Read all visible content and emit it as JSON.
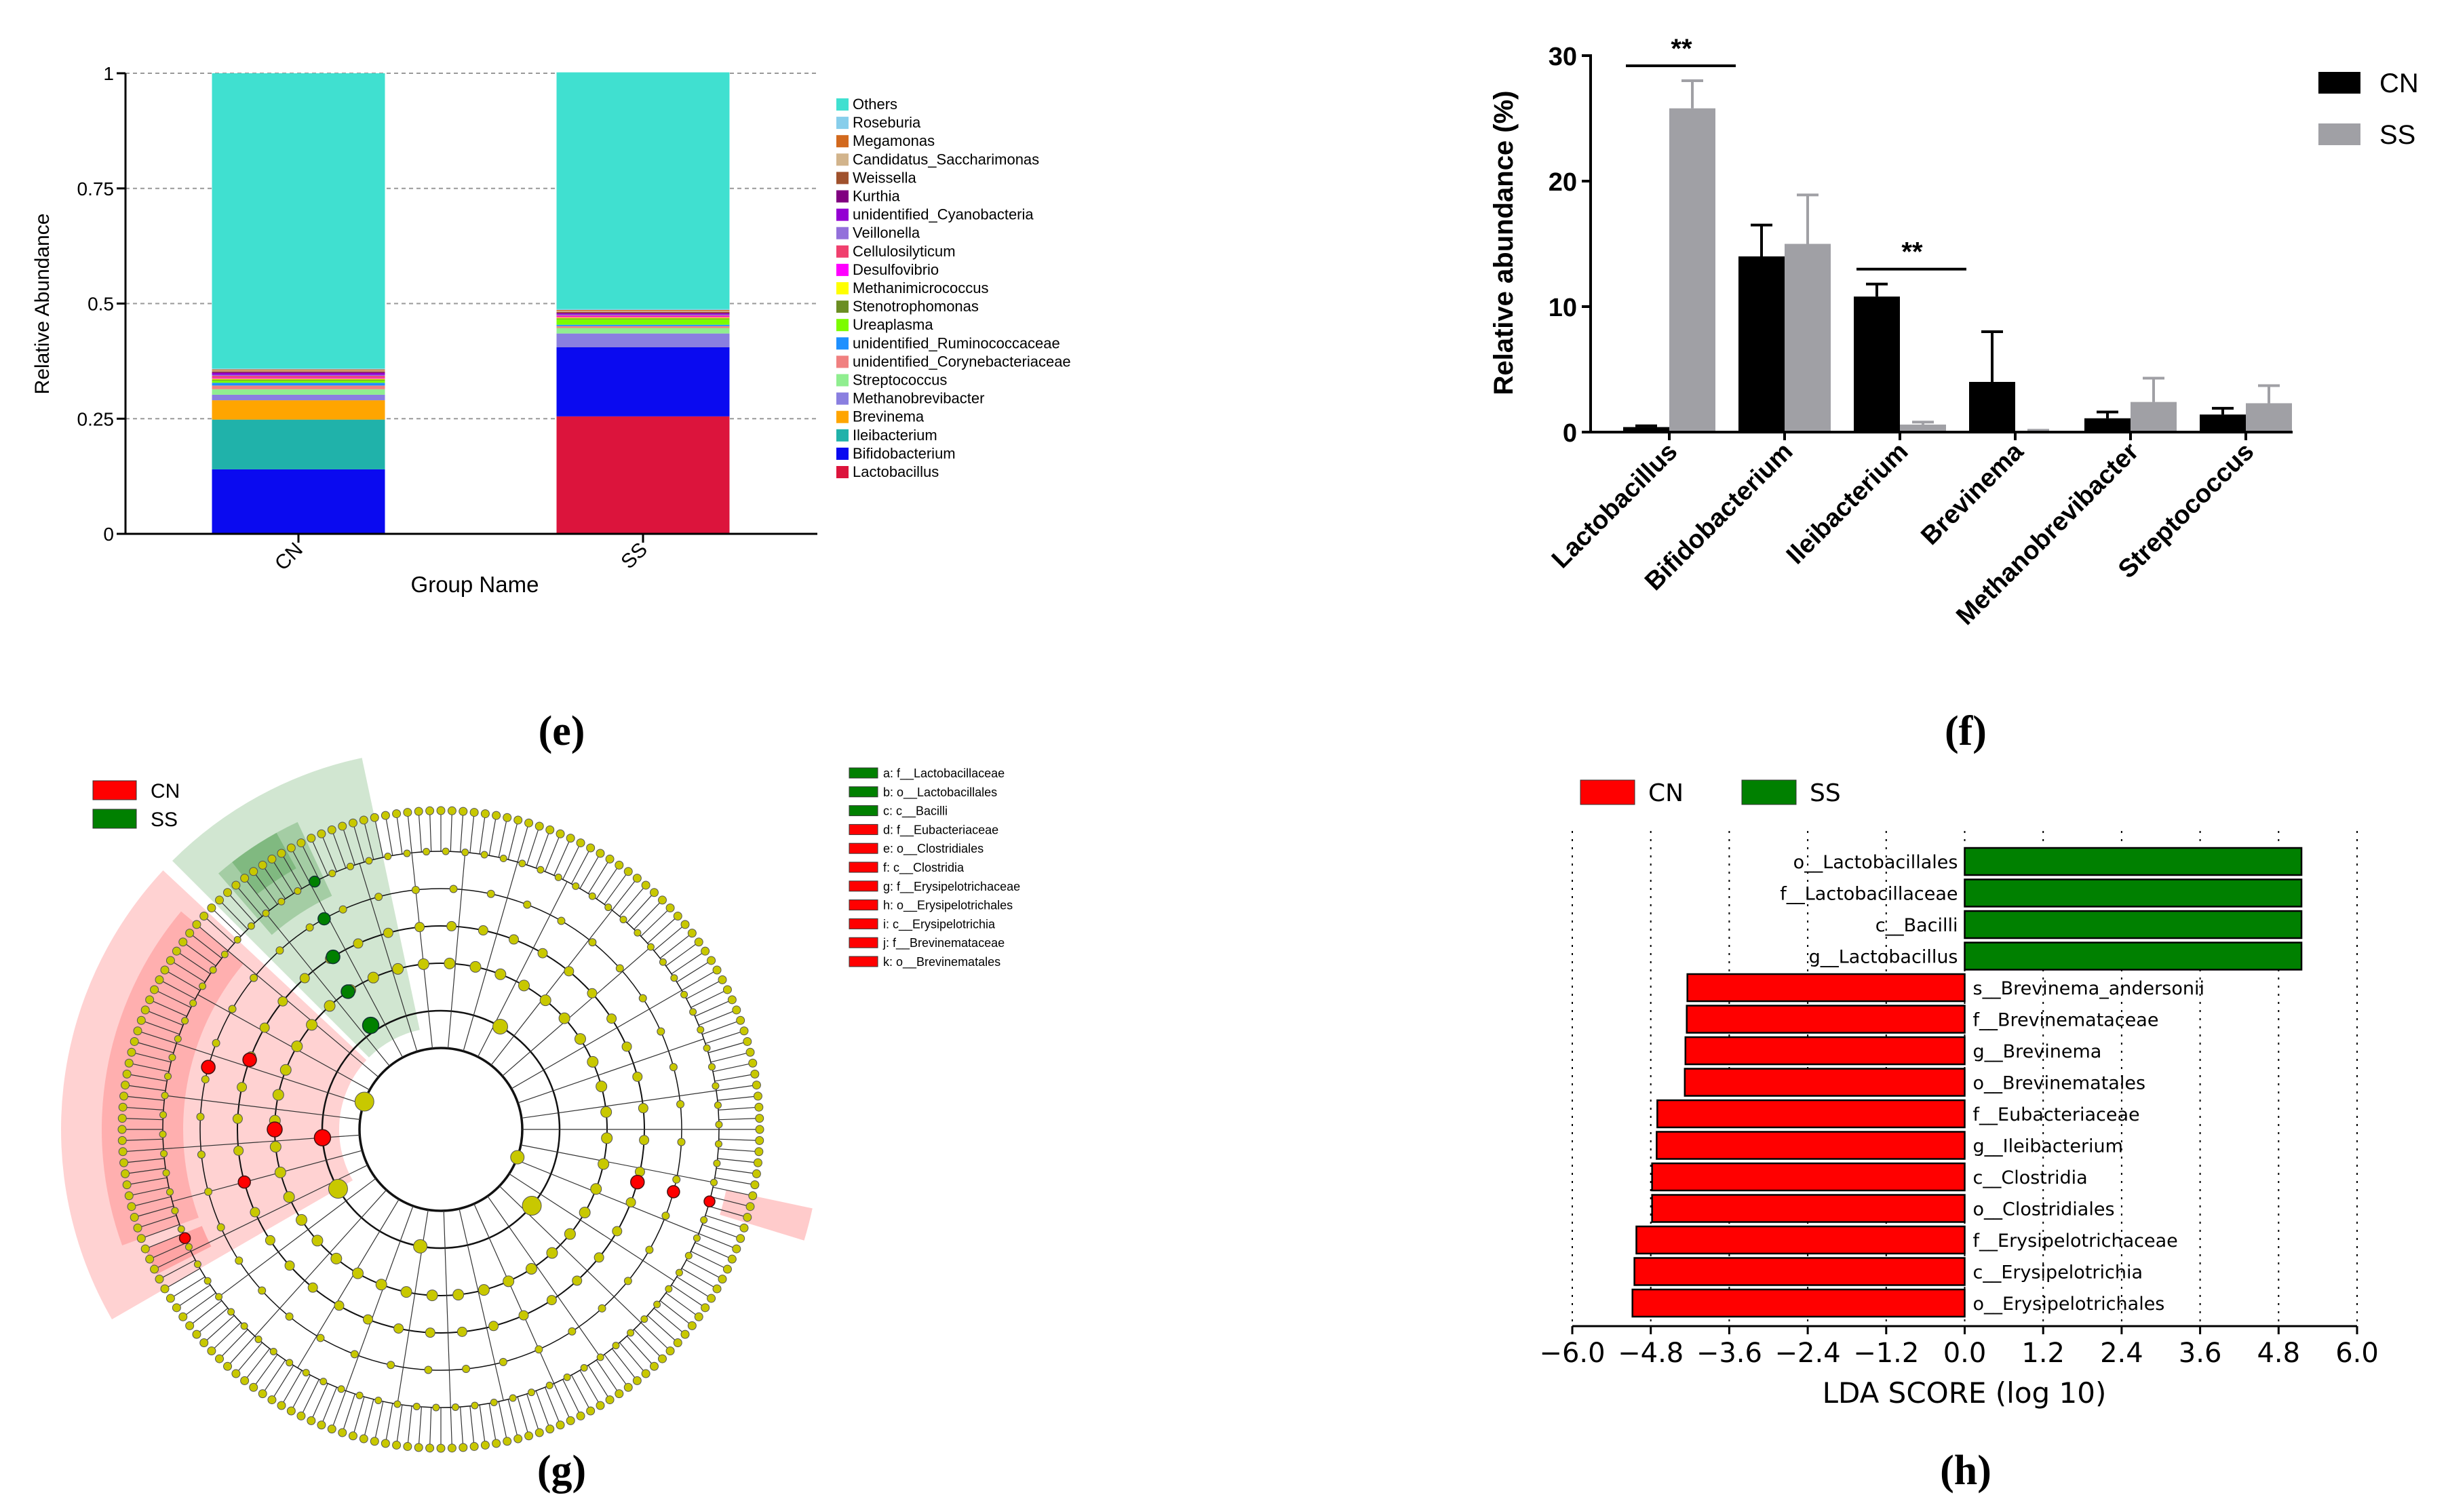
{
  "panel_labels": [
    "(e)",
    "(f)",
    "(g)",
    "(h)"
  ],
  "chart_data": [
    {
      "id": "e",
      "type": "bar",
      "stacked": true,
      "title": "",
      "xlabel": "Group Name",
      "ylabel": "Relative Abundance",
      "ylim": [
        0,
        1
      ],
      "yticks": [
        "0",
        "0.25",
        "0.5",
        "0.75",
        "1"
      ],
      "ytick_values": [
        0,
        0.25,
        0.5,
        0.75,
        1
      ],
      "grid": "dashed horizontal",
      "legend": "right",
      "categories": [
        "CN",
        "SS"
      ],
      "series": [
        {
          "name": "Lactobacillus",
          "color": "#DC143C",
          "values": [
            0.0,
            0.255
          ]
        },
        {
          "name": "Bifidobacterium",
          "color": "#0A0AF0",
          "values": [
            0.14,
            0.15
          ]
        },
        {
          "name": "Ileibacterium",
          "color": "#20B2AA",
          "values": [
            0.108,
            0.0
          ]
        },
        {
          "name": "Brevinema",
          "color": "#FFA500",
          "values": [
            0.042,
            0.0
          ]
        },
        {
          "name": "Methanobrevibacter",
          "color": "#8A7FE0",
          "values": [
            0.012,
            0.03
          ]
        },
        {
          "name": "Streptococcus",
          "color": "#90EE90",
          "values": [
            0.012,
            0.012
          ]
        },
        {
          "name": "unidentified_Corynebacteriaceae",
          "color": "#F08080",
          "values": [
            0.008,
            0.004
          ]
        },
        {
          "name": "unidentified_Ruminococcaceae",
          "color": "#1E90FF",
          "values": [
            0.006,
            0.003
          ]
        },
        {
          "name": "Ureaplasma",
          "color": "#7CFC00",
          "values": [
            0.005,
            0.012
          ]
        },
        {
          "name": "Stenotrophomonas",
          "color": "#6B8E23",
          "values": [
            0.002,
            0.002
          ]
        },
        {
          "name": "Methanimicrococcus",
          "color": "#FFFF00",
          "values": [
            0.002,
            0.002
          ]
        },
        {
          "name": "Desulfovibrio",
          "color": "#FF00FF",
          "values": [
            0.002,
            0.002
          ]
        },
        {
          "name": "Cellulosilyticum",
          "color": "#F0406E",
          "values": [
            0.004,
            0.002
          ]
        },
        {
          "name": "Veillonella",
          "color": "#9370DB",
          "values": [
            0.002,
            0.002
          ]
        },
        {
          "name": "unidentified_Cyanobacteria",
          "color": "#9400D3",
          "values": [
            0.004,
            0.002
          ]
        },
        {
          "name": "Kurthia",
          "color": "#800080",
          "values": [
            0.002,
            0.002
          ]
        },
        {
          "name": "Weissella",
          "color": "#A0522D",
          "values": [
            0.002,
            0.002
          ]
        },
        {
          "name": "Candidatus_Saccharimonas",
          "color": "#D2B48C",
          "values": [
            0.002,
            0.002
          ]
        },
        {
          "name": "Megamonas",
          "color": "#D2691E",
          "values": [
            0.002,
            0.002
          ]
        },
        {
          "name": "Roseburia",
          "color": "#87CEEB",
          "values": [
            0.002,
            0.002
          ]
        },
        {
          "name": "Others",
          "color": "#40E0D0",
          "values": [
            0.641,
            0.514
          ]
        }
      ]
    },
    {
      "id": "f",
      "type": "bar",
      "title": "",
      "xlabel": "",
      "ylabel": "Relative abundance (%)",
      "ylim": [
        0,
        30
      ],
      "yticks": [
        "0",
        "10",
        "20",
        "30"
      ],
      "ytick_values": [
        0,
        10,
        20,
        30
      ],
      "legend": "top-right",
      "categories": [
        "Lactobacillus",
        "Bifidobacterium",
        "Ileibacterium",
        "Brevinema",
        "Methanobrevibacter",
        "Streptococcus"
      ],
      "series": [
        {
          "name": "CN",
          "color": "#000000",
          "values": [
            0.4,
            14.0,
            10.8,
            4.0,
            1.1,
            1.4
          ],
          "errors": [
            0.1,
            2.5,
            1.0,
            4.0,
            0.5,
            0.5
          ]
        },
        {
          "name": "SS",
          "color": "#A0A0A5",
          "values": [
            25.8,
            15.0,
            0.6,
            0.1,
            2.4,
            2.3
          ],
          "errors": [
            2.2,
            3.9,
            0.2,
            0.05,
            1.9,
            1.4
          ]
        }
      ],
      "annotations": [
        {
          "category": "Lactobacillus",
          "text": "**"
        },
        {
          "category": "Ileibacterium",
          "text": "**"
        }
      ]
    },
    {
      "id": "g",
      "type": "cladogram",
      "title": "",
      "legend_groups": [
        {
          "name": "CN",
          "color": "#FF0000"
        },
        {
          "name": "SS",
          "color": "#008000"
        }
      ],
      "node_colors": {
        "neutral": "#C8C800",
        "CN": "#FF0000",
        "SS": "#008000"
      },
      "taxa": [
        {
          "key": "a",
          "label": "a: f__Lactobacillaceae",
          "group": "SS"
        },
        {
          "key": "b",
          "label": "b: o__Lactobacillales",
          "group": "SS"
        },
        {
          "key": "c",
          "label": "c: c__Bacilli",
          "group": "SS"
        },
        {
          "key": "d",
          "label": "d: f__Eubacteriaceae",
          "group": "CN"
        },
        {
          "key": "e",
          "label": "e: o__Clostridiales",
          "group": "CN"
        },
        {
          "key": "f",
          "label": "f: c__Clostridia",
          "group": "CN"
        },
        {
          "key": "g",
          "label": "g: f__Erysipelotrichaceae",
          "group": "CN"
        },
        {
          "key": "h",
          "label": "h: o__Erysipelotrichales",
          "group": "CN"
        },
        {
          "key": "i",
          "label": "i: c__Erysipelotrichia",
          "group": "CN"
        },
        {
          "key": "j",
          "label": "j: f__Brevinemataceae",
          "group": "CN"
        },
        {
          "key": "k",
          "label": "k: o__Brevinematales",
          "group": "CN"
        }
      ]
    },
    {
      "id": "h",
      "type": "bar",
      "orientation": "horizontal",
      "title": "",
      "xlabel": "LDA SCORE (log 10)",
      "xlim": [
        -6.0,
        6.0
      ],
      "xticks": [
        "−6.0",
        "−4.8",
        "−3.6",
        "−2.4",
        "−1.2",
        "0.0",
        "1.2",
        "2.4",
        "3.6",
        "4.8",
        "6.0"
      ],
      "xtick_values": [
        -6.0,
        -4.8,
        -3.6,
        -2.4,
        -1.2,
        0.0,
        1.2,
        2.4,
        3.6,
        4.8,
        6.0
      ],
      "legend": "top-left",
      "groups": [
        {
          "name": "CN",
          "color": "#FF0000"
        },
        {
          "name": "SS",
          "color": "#008000"
        }
      ],
      "bars": [
        {
          "label": "o__Lactobacillales",
          "value": 5.15,
          "group": "SS"
        },
        {
          "label": "f__Lactobacillaceae",
          "value": 5.15,
          "group": "SS"
        },
        {
          "label": "c__Bacilli",
          "value": 5.15,
          "group": "SS"
        },
        {
          "label": "g__Lactobacillus",
          "value": 5.15,
          "group": "SS"
        },
        {
          "label": "s__Brevinema_andersonii",
          "value": -4.24,
          "group": "CN"
        },
        {
          "label": "f__Brevinemataceae",
          "value": -4.25,
          "group": "CN"
        },
        {
          "label": "g__Brevinema",
          "value": -4.27,
          "group": "CN"
        },
        {
          "label": "o__Brevinematales",
          "value": -4.28,
          "group": "CN"
        },
        {
          "label": "f__Eubacteriaceae",
          "value": -4.7,
          "group": "CN"
        },
        {
          "label": "g__Ileibacterium",
          "value": -4.71,
          "group": "CN"
        },
        {
          "label": "c__Clostridia",
          "value": -4.78,
          "group": "CN"
        },
        {
          "label": "o__Clostridiales",
          "value": -4.78,
          "group": "CN"
        },
        {
          "label": "f__Erysipelotrichaceae",
          "value": -5.02,
          "group": "CN"
        },
        {
          "label": "c__Erysipelotrichia",
          "value": -5.05,
          "group": "CN"
        },
        {
          "label": "o__Erysipelotrichales",
          "value": -5.08,
          "group": "CN"
        }
      ]
    }
  ]
}
